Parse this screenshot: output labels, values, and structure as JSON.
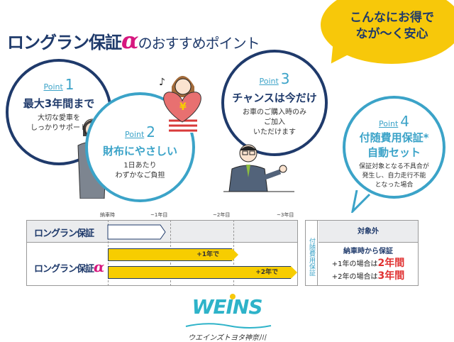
{
  "header": {
    "title_brand": "ロングラン保証",
    "title_alpha": "α",
    "title_rest": "のおすすめポイント"
  },
  "bubble": {
    "line1": "こんなにお得で",
    "line2": "なが〜く安心"
  },
  "points": [
    {
      "label": "Point",
      "num": "1",
      "heading": "最大3年間まで",
      "desc1": "大切な愛車を",
      "desc2": "しっかりサポート"
    },
    {
      "label": "Point",
      "num": "2",
      "heading": "財布にやさしい",
      "desc1": "1日あたり",
      "desc2": "わずかなご負担"
    },
    {
      "label": "Point",
      "num": "3",
      "heading": "チャンスは今だけ",
      "desc1": "お車のご購入時のみ",
      "desc2": "ご加入",
      "desc3": "いただけます"
    },
    {
      "label": "Point",
      "num": "4",
      "heading1": "付随費用保証*",
      "heading2": "自動セット",
      "desc1": "保証対象となる不具合が",
      "desc2": "発生し、自力走行不能",
      "desc3": "となった場合"
    }
  ],
  "illustration": {
    "heart_symbol": "¥",
    "music_note": "♪"
  },
  "timeline": {
    "axis": [
      "納車時",
      "~1年目",
      "~2年目",
      "~3年目"
    ],
    "rows": [
      {
        "name": "ロングラン保証"
      },
      {
        "name": "ロングラン保証",
        "alpha": "α",
        "bars": [
          "+1年で",
          "+2年で"
        ]
      }
    ]
  },
  "side_table": {
    "vertical_label": "付随費用保証",
    "row1": "対象外",
    "row2_title": "納車時から保証",
    "line1_pre": "+1年の場合は",
    "line1_val": "2年間",
    "line2_pre": "+2年の場合は",
    "line2_val": "3年間"
  },
  "logo": {
    "brand": "WEINS",
    "sub": "ウエインズトヨタ神奈川"
  },
  "colors": {
    "navy": "#1f3a6b",
    "teal": "#3ba3c8",
    "yellow": "#f7cd00",
    "magenta": "#d6187f",
    "red": "#e03030"
  }
}
